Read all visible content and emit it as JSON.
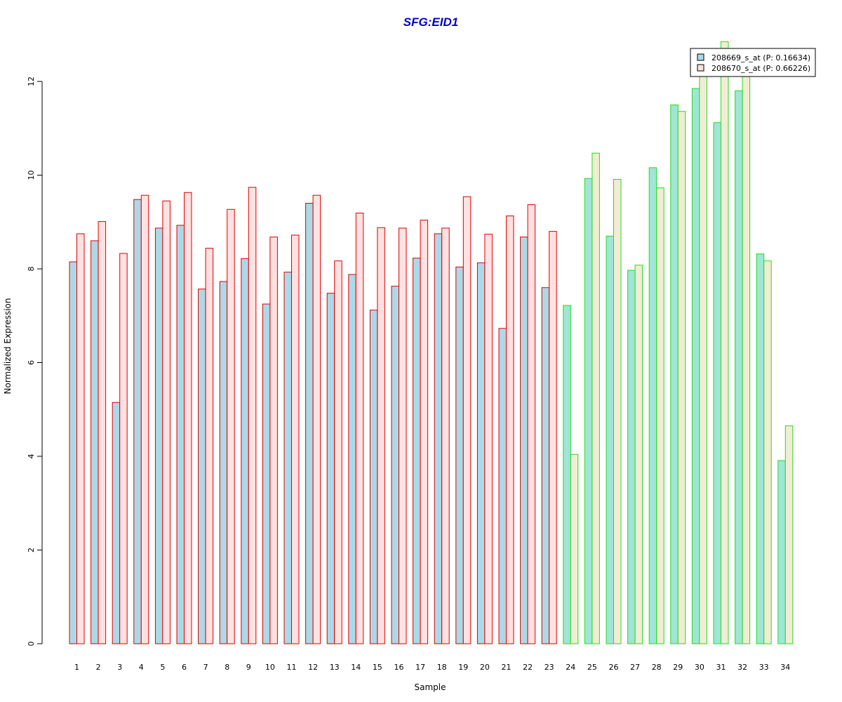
{
  "chart_data": {
    "type": "bar",
    "title": "SFG:EID1",
    "xlabel": "Sample",
    "ylabel": "Normalized Expression",
    "ylim": [
      0,
      12
    ],
    "yticks": [
      0,
      2,
      4,
      6,
      8,
      10,
      12
    ],
    "grid": false,
    "legend_position": "top-right",
    "categories": [
      "1",
      "2",
      "3",
      "4",
      "5",
      "6",
      "7",
      "8",
      "9",
      "10",
      "11",
      "12",
      "13",
      "14",
      "15",
      "16",
      "17",
      "18",
      "19",
      "20",
      "21",
      "22",
      "23",
      "24",
      "25",
      "26",
      "27",
      "28",
      "29",
      "30",
      "31",
      "32",
      "33",
      "34"
    ],
    "group_a_count": 23,
    "series": [
      {
        "name": "208669_s_at (P: 0.16634)",
        "values": [
          8.15,
          8.6,
          5.15,
          9.48,
          8.87,
          8.93,
          7.57,
          7.73,
          8.22,
          7.25,
          7.93,
          9.4,
          7.48,
          7.88,
          7.12,
          7.63,
          8.23,
          8.75,
          8.04,
          8.13,
          6.73,
          8.68,
          7.6,
          7.22,
          9.93,
          8.7,
          7.97,
          10.16,
          11.5,
          11.85,
          11.12,
          11.8,
          8.32,
          3.91
        ],
        "fill_group_a": "#add8e6",
        "fill_group_b": "#a0e5d5"
      },
      {
        "name": "208670_s_at (P: 0.66226)",
        "values": [
          8.75,
          9.01,
          8.33,
          9.57,
          9.45,
          9.63,
          8.44,
          9.27,
          9.74,
          8.68,
          8.72,
          9.57,
          8.17,
          9.19,
          8.88,
          8.87,
          9.04,
          8.87,
          9.54,
          8.74,
          9.13,
          9.37,
          8.8,
          4.04,
          10.47,
          9.91,
          8.08,
          9.73,
          11.36,
          12.3,
          12.85,
          12.3,
          8.17,
          4.65
        ],
        "fill_group_a": "#ffe1e1",
        "fill_group_b": "#f2ecd4"
      }
    ],
    "stroke_group_a": "#dd0000",
    "stroke_group_b": "#22dd22",
    "legend_swatch_colors": [
      "#add8e6",
      "#ffe1e1"
    ]
  }
}
